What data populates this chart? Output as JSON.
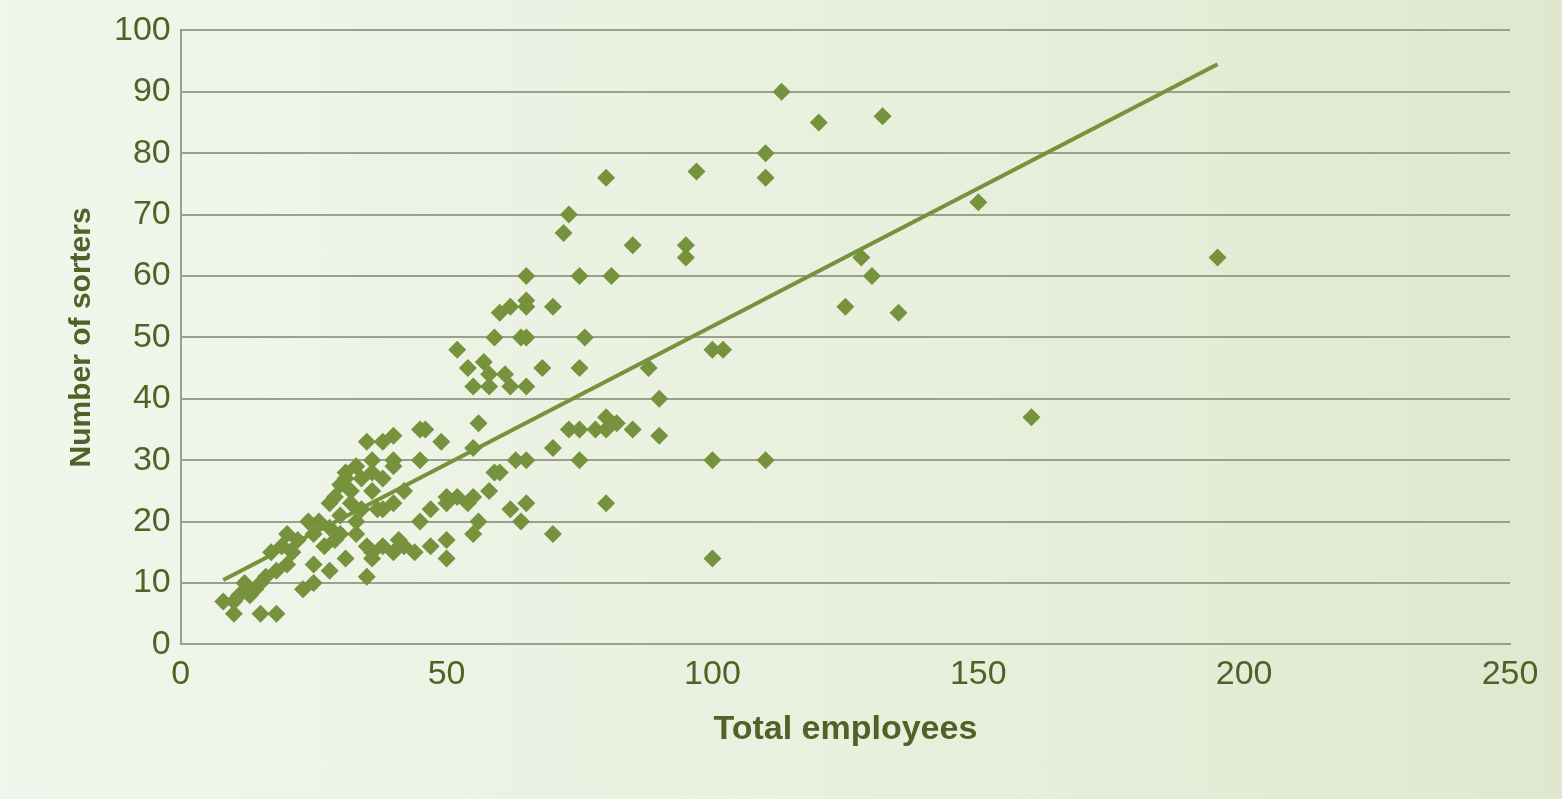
{
  "chart_data": {
    "type": "scatter",
    "xlabel": "Total employees",
    "ylabel": "Number of sorters",
    "xlim": [
      0,
      250
    ],
    "xticks": [
      0,
      50,
      100,
      150,
      200,
      250
    ],
    "ylim": [
      0,
      100
    ],
    "yticks": [
      0,
      10,
      20,
      30,
      40,
      50,
      60,
      70,
      80,
      90,
      100
    ],
    "grid": "y",
    "legend": false,
    "marker": "diamond",
    "series": [
      {
        "color": "#76923c",
        "x": [
          113,
          120,
          132,
          97,
          80,
          110,
          110,
          73,
          72,
          85,
          95,
          95,
          128,
          130,
          125,
          135,
          150,
          195,
          160,
          100,
          102,
          88,
          90,
          90,
          100,
          110,
          100,
          80,
          70,
          75,
          81,
          65,
          65,
          65,
          62,
          60,
          70,
          76,
          64,
          59,
          65,
          52,
          54,
          57,
          58,
          61,
          55,
          58,
          62,
          65,
          68,
          75,
          56,
          55,
          60,
          59,
          58,
          55,
          54,
          52,
          50,
          50,
          49,
          46,
          45,
          45,
          50,
          50,
          47,
          44,
          47,
          45,
          55,
          56,
          62,
          65,
          64,
          63,
          65,
          70,
          73,
          75,
          78,
          80,
          80,
          82,
          85,
          75,
          42,
          40,
          38,
          36,
          35,
          40,
          40,
          38,
          36,
          34,
          33,
          32,
          31,
          30,
          29,
          28,
          30,
          33,
          35,
          36,
          38,
          40,
          41,
          42,
          35,
          36,
          31,
          28,
          25,
          25,
          23,
          27,
          25,
          24,
          22,
          21,
          20,
          19,
          20,
          18,
          17,
          16,
          15,
          14,
          13,
          12,
          11,
          10,
          8,
          10,
          15,
          18,
          30,
          26,
          28,
          34,
          32,
          38,
          40,
          36,
          37,
          29,
          31,
          33
        ],
        "values": [
          90,
          85,
          86,
          77,
          76,
          80,
          76,
          70,
          67,
          65,
          65,
          63,
          63,
          60,
          55,
          54,
          72,
          63,
          37,
          48,
          48,
          45,
          40,
          34,
          30,
          30,
          14,
          23,
          18,
          60,
          60,
          60,
          56,
          55,
          55,
          54,
          55,
          50,
          50,
          50,
          50,
          48,
          45,
          46,
          44,
          44,
          42,
          42,
          42,
          42,
          45,
          45,
          36,
          32,
          28,
          28,
          25,
          24,
          23,
          24,
          24,
          23,
          33,
          35,
          35,
          30,
          17,
          14,
          16,
          15,
          22,
          20,
          18,
          20,
          22,
          23,
          20,
          30,
          30,
          32,
          35,
          35,
          35,
          35,
          37,
          36,
          35,
          30,
          25,
          34,
          33,
          30,
          33,
          29,
          23,
          22,
          25,
          22,
          20,
          25,
          28,
          26,
          24,
          23,
          21,
          18,
          16,
          15,
          16,
          15,
          17,
          16,
          11,
          14,
          14,
          12,
          13,
          10,
          9,
          16,
          18,
          20,
          17,
          15,
          18,
          16,
          13,
          12,
          15,
          11,
          10,
          9,
          8,
          10,
          8,
          7,
          7,
          5,
          5,
          5,
          18,
          20,
          19,
          27,
          23,
          27,
          30,
          28,
          22,
          17,
          27,
          29
        ]
      },
      {
        "type": "line",
        "color": "#76923c",
        "line_style": "solid",
        "marker": "none",
        "x": [
          8,
          195
        ],
        "values": [
          10.5,
          94.5
        ]
      }
    ]
  }
}
